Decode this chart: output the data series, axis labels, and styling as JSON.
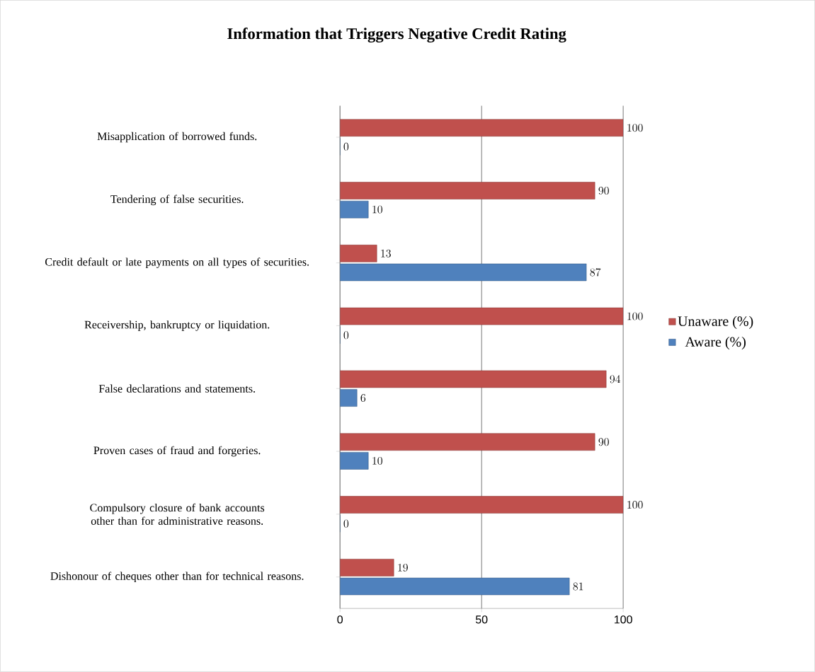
{
  "chart_data": {
    "type": "bar",
    "orientation": "horizontal",
    "title": "Information that Triggers Negative Credit Rating",
    "categories": [
      "Misapplication of borrowed funds.",
      "Tendering of false securities.",
      "Credit default or late payments on all types of securities.",
      "Receivership, bankruptcy or liquidation.",
      "False declarations and statements.",
      "Proven cases of fraud and forgeries.",
      "Compulsory closure of bank accounts other than for administrative reasons.",
      "Dishonour of cheques other than for technical reasons."
    ],
    "series": [
      {
        "name": "Unaware (%)",
        "color": "#c0504d",
        "values": [
          100,
          90,
          13,
          100,
          94,
          90,
          100,
          19
        ]
      },
      {
        "name": "Aware (%)",
        "color": "#4f81bd",
        "values": [
          0,
          10,
          87,
          0,
          6,
          10,
          0,
          81
        ]
      }
    ],
    "xlim": [
      0,
      100
    ],
    "xticks": [
      0,
      50,
      100
    ],
    "grid": "x",
    "legend": "right",
    "data_labels": true
  }
}
